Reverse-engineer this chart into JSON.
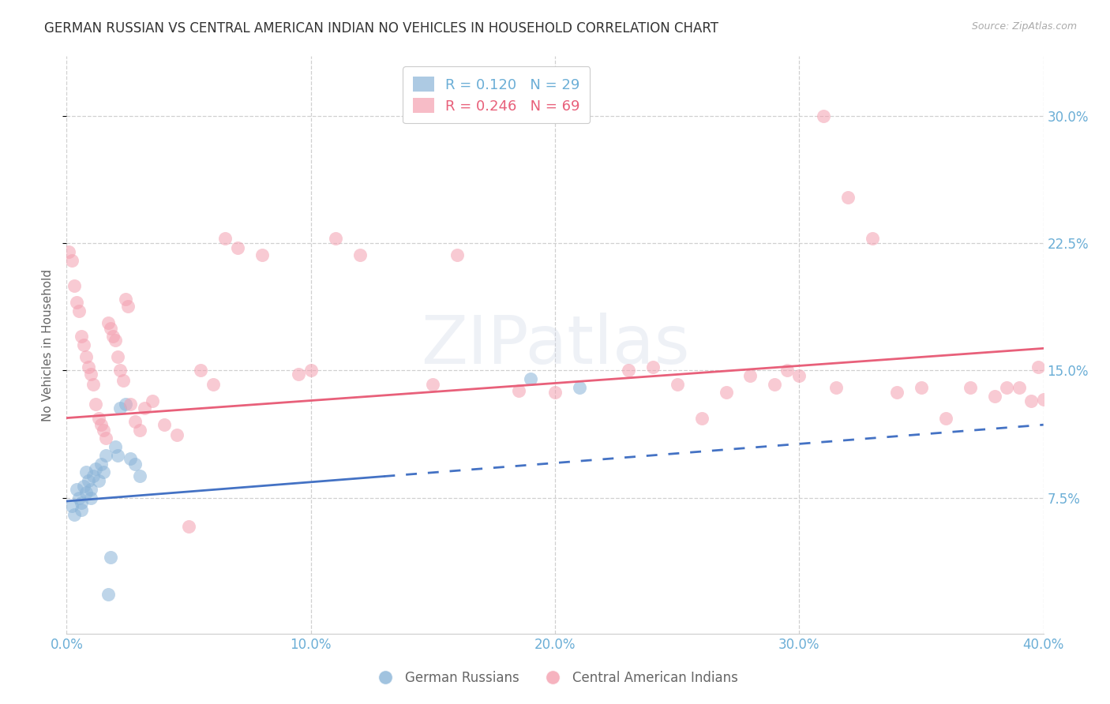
{
  "title": "GERMAN RUSSIAN VS CENTRAL AMERICAN INDIAN NO VEHICLES IN HOUSEHOLD CORRELATION CHART",
  "source": "Source: ZipAtlas.com",
  "ylabel": "No Vehicles in Household",
  "ytick_labels": [
    "7.5%",
    "15.0%",
    "22.5%",
    "30.0%"
  ],
  "ytick_values": [
    0.075,
    0.15,
    0.225,
    0.3
  ],
  "xlim": [
    0.0,
    0.4
  ],
  "ylim": [
    -0.005,
    0.335
  ],
  "xtick_values": [
    0.0,
    0.1,
    0.2,
    0.3,
    0.4
  ],
  "xtick_labels": [
    "0.0%",
    "10.0%",
    "20.0%",
    "30.0%",
    "40.0%"
  ],
  "legend_r1": "R = 0.120",
  "legend_n1": "N = 29",
  "legend_r2": "R = 0.246",
  "legend_n2": "N = 69",
  "color_blue": "#8ab4d8",
  "color_pink": "#f4a0b0",
  "color_blue_line": "#4472c4",
  "color_pink_line": "#e8607a",
  "color_tick": "#6baed6",
  "background": "#ffffff",
  "grid_color": "#d0d0d0",
  "german_russian_x": [
    0.002,
    0.003,
    0.004,
    0.005,
    0.006,
    0.006,
    0.007,
    0.008,
    0.008,
    0.009,
    0.01,
    0.01,
    0.011,
    0.012,
    0.013,
    0.014,
    0.015,
    0.016,
    0.017,
    0.018,
    0.02,
    0.021,
    0.022,
    0.024,
    0.026,
    0.028,
    0.03,
    0.19,
    0.21
  ],
  "german_russian_y": [
    0.07,
    0.065,
    0.08,
    0.075,
    0.072,
    0.068,
    0.082,
    0.078,
    0.09,
    0.085,
    0.08,
    0.075,
    0.088,
    0.092,
    0.085,
    0.095,
    0.09,
    0.1,
    0.018,
    0.04,
    0.105,
    0.1,
    0.128,
    0.13,
    0.098,
    0.095,
    0.088,
    0.145,
    0.14
  ],
  "central_american_x": [
    0.001,
    0.002,
    0.003,
    0.004,
    0.005,
    0.006,
    0.007,
    0.008,
    0.009,
    0.01,
    0.011,
    0.012,
    0.013,
    0.014,
    0.015,
    0.016,
    0.017,
    0.018,
    0.019,
    0.02,
    0.021,
    0.022,
    0.023,
    0.024,
    0.025,
    0.026,
    0.028,
    0.03,
    0.032,
    0.035,
    0.04,
    0.045,
    0.05,
    0.055,
    0.06,
    0.065,
    0.07,
    0.08,
    0.095,
    0.1,
    0.11,
    0.12,
    0.15,
    0.16,
    0.185,
    0.2,
    0.23,
    0.25,
    0.27,
    0.28,
    0.29,
    0.295,
    0.3,
    0.31,
    0.32,
    0.33,
    0.34,
    0.35,
    0.36,
    0.37,
    0.38,
    0.385,
    0.39,
    0.395,
    0.398,
    0.4,
    0.24,
    0.26,
    0.315
  ],
  "central_american_y": [
    0.22,
    0.215,
    0.2,
    0.19,
    0.185,
    0.17,
    0.165,
    0.158,
    0.152,
    0.148,
    0.142,
    0.13,
    0.122,
    0.118,
    0.115,
    0.11,
    0.178,
    0.175,
    0.17,
    0.168,
    0.158,
    0.15,
    0.144,
    0.192,
    0.188,
    0.13,
    0.12,
    0.115,
    0.128,
    0.132,
    0.118,
    0.112,
    0.058,
    0.15,
    0.142,
    0.228,
    0.222,
    0.218,
    0.148,
    0.15,
    0.228,
    0.218,
    0.142,
    0.218,
    0.138,
    0.137,
    0.15,
    0.142,
    0.137,
    0.147,
    0.142,
    0.15,
    0.147,
    0.3,
    0.252,
    0.228,
    0.137,
    0.14,
    0.122,
    0.14,
    0.135,
    0.14,
    0.14,
    0.132,
    0.152,
    0.133,
    0.152,
    0.122,
    0.14
  ],
  "gr_line_start_x": 0.0,
  "gr_line_end_x": 0.4,
  "gr_line_solid_end_x": 0.13,
  "gr_line_start_y": 0.073,
  "gr_line_end_y": 0.118,
  "ca_line_start_x": 0.0,
  "ca_line_end_x": 0.4,
  "ca_line_start_y": 0.122,
  "ca_line_end_y": 0.163
}
